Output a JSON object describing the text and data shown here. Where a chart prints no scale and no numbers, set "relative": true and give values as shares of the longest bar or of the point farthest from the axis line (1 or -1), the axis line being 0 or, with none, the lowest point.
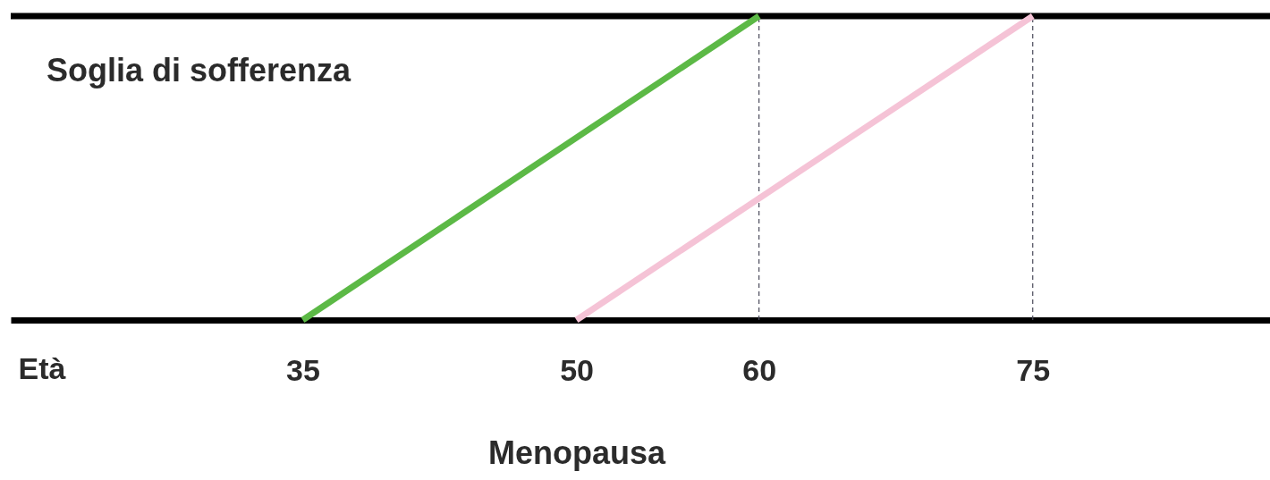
{
  "chart_data": {
    "type": "line",
    "relative": true,
    "xlabel": "Età",
    "xlim": [
      19,
      88
    ],
    "xticks": [
      35,
      50,
      60,
      75
    ],
    "series": [
      {
        "color": "#5cb946",
        "x": [
          35,
          60
        ],
        "values": [
          0,
          1
        ]
      },
      {
        "color": "#f5c3d6",
        "x": [
          50,
          75
        ],
        "values": [
          0,
          1
        ]
      }
    ],
    "ref_lines": [
      {
        "axis": "y",
        "value": 1,
        "label": "Soglia di sofferenza",
        "color": "#000000",
        "line_style": "solid"
      },
      {
        "axis": "x",
        "value": 60,
        "color": "#4a4a5a",
        "line_style": "dashed"
      },
      {
        "axis": "x",
        "value": 75,
        "color": "#4a4a5a",
        "line_style": "dashed"
      }
    ],
    "annotations": [
      "Menopausa"
    ]
  }
}
